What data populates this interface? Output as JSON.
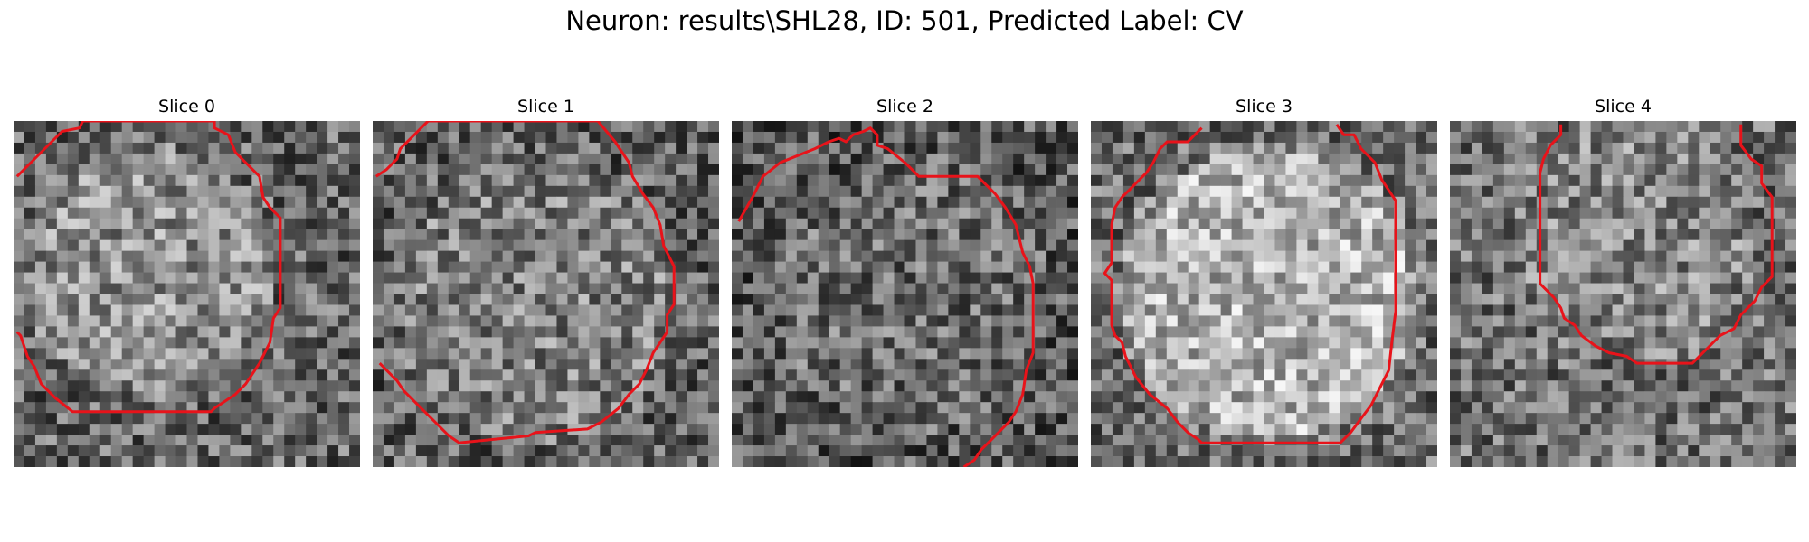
{
  "figure": {
    "title": "Neuron: results\\SHL28, ID: 501, Predicted Label: CV"
  },
  "panels": [
    {
      "title": "Slice 0",
      "seed": 11,
      "center": [
        0.39,
        0.43
      ],
      "radius": 0.36,
      "outside_base": 0.4,
      "contrast": 0.16,
      "contour_color": "#e8131a",
      "contour": [
        [
          0.01,
          0.16
        ],
        [
          0.08,
          0.09
        ],
        [
          0.14,
          0.03
        ],
        [
          0.19,
          0.02
        ],
        [
          0.2,
          0.0
        ],
        [
          0.58,
          0.0
        ],
        [
          0.58,
          0.02
        ],
        [
          0.62,
          0.04
        ],
        [
          0.64,
          0.09
        ],
        [
          0.71,
          0.16
        ],
        [
          0.72,
          0.22
        ],
        [
          0.74,
          0.25
        ],
        [
          0.77,
          0.28
        ],
        [
          0.77,
          0.54
        ],
        [
          0.75,
          0.57
        ],
        [
          0.74,
          0.64
        ],
        [
          0.71,
          0.7
        ],
        [
          0.67,
          0.76
        ],
        [
          0.64,
          0.79
        ],
        [
          0.61,
          0.81
        ],
        [
          0.58,
          0.83
        ],
        [
          0.57,
          0.84
        ],
        [
          0.17,
          0.84
        ],
        [
          0.12,
          0.8
        ],
        [
          0.08,
          0.76
        ],
        [
          0.06,
          0.71
        ],
        [
          0.04,
          0.68
        ],
        [
          0.02,
          0.62
        ],
        [
          0.01,
          0.61
        ]
      ]
    },
    {
      "title": "Slice 1",
      "seed": 23,
      "center": [
        0.48,
        0.52
      ],
      "radius": 0.41,
      "outside_base": 0.38,
      "contrast": 0.12,
      "contour_color": "#e8131a",
      "contour": [
        [
          0.01,
          0.16
        ],
        [
          0.04,
          0.14
        ],
        [
          0.07,
          0.11
        ],
        [
          0.08,
          0.08
        ],
        [
          0.12,
          0.04
        ],
        [
          0.15,
          0.01
        ],
        [
          0.16,
          0.0
        ],
        [
          0.65,
          0.0
        ],
        [
          0.7,
          0.06
        ],
        [
          0.74,
          0.12
        ],
        [
          0.75,
          0.16
        ],
        [
          0.78,
          0.21
        ],
        [
          0.81,
          0.25
        ],
        [
          0.83,
          0.3
        ],
        [
          0.84,
          0.36
        ],
        [
          0.87,
          0.42
        ],
        [
          0.87,
          0.53
        ],
        [
          0.85,
          0.56
        ],
        [
          0.85,
          0.61
        ],
        [
          0.81,
          0.67
        ],
        [
          0.79,
          0.72
        ],
        [
          0.77,
          0.76
        ],
        [
          0.74,
          0.79
        ],
        [
          0.71,
          0.83
        ],
        [
          0.66,
          0.87
        ],
        [
          0.62,
          0.89
        ],
        [
          0.47,
          0.9
        ],
        [
          0.45,
          0.91
        ],
        [
          0.25,
          0.93
        ],
        [
          0.22,
          0.91
        ],
        [
          0.19,
          0.88
        ],
        [
          0.13,
          0.82
        ],
        [
          0.09,
          0.78
        ],
        [
          0.07,
          0.75
        ],
        [
          0.04,
          0.72
        ],
        [
          0.02,
          0.7
        ]
      ]
    },
    {
      "title": "Slice 2",
      "seed": 37,
      "center": [
        0.52,
        0.5
      ],
      "radius": 0.4,
      "outside_base": 0.34,
      "contrast": 0.08,
      "contour_color": "#e8131a",
      "contour": [
        [
          0.02,
          0.29
        ],
        [
          0.06,
          0.22
        ],
        [
          0.09,
          0.16
        ],
        [
          0.14,
          0.12
        ],
        [
          0.19,
          0.1
        ],
        [
          0.24,
          0.08
        ],
        [
          0.28,
          0.06
        ],
        [
          0.31,
          0.05
        ],
        [
          0.33,
          0.06
        ],
        [
          0.35,
          0.04
        ],
        [
          0.38,
          0.03
        ],
        [
          0.4,
          0.02
        ],
        [
          0.42,
          0.04
        ],
        [
          0.42,
          0.07
        ],
        [
          0.45,
          0.08
        ],
        [
          0.5,
          0.12
        ],
        [
          0.52,
          0.14
        ],
        [
          0.54,
          0.16
        ],
        [
          0.71,
          0.16
        ],
        [
          0.76,
          0.21
        ],
        [
          0.79,
          0.25
        ],
        [
          0.82,
          0.3
        ],
        [
          0.84,
          0.38
        ],
        [
          0.86,
          0.42
        ],
        [
          0.87,
          0.47
        ],
        [
          0.87,
          0.67
        ],
        [
          0.85,
          0.72
        ],
        [
          0.84,
          0.79
        ],
        [
          0.82,
          0.84
        ],
        [
          0.8,
          0.87
        ],
        [
          0.75,
          0.92
        ],
        [
          0.72,
          0.95
        ],
        [
          0.7,
          0.98
        ],
        [
          0.67,
          1.0
        ]
      ]
    },
    {
      "title": "Slice 3",
      "seed": 53,
      "center": [
        0.52,
        0.5
      ],
      "radius": 0.43,
      "outside_base": 0.42,
      "contrast": 0.28,
      "contour_color": "#e8131a",
      "contour": [
        [
          0.32,
          0.02
        ],
        [
          0.28,
          0.06
        ],
        [
          0.22,
          0.06
        ],
        [
          0.2,
          0.08
        ],
        [
          0.18,
          0.12
        ],
        [
          0.16,
          0.15
        ],
        [
          0.14,
          0.17
        ],
        [
          0.12,
          0.19
        ],
        [
          0.09,
          0.22
        ],
        [
          0.07,
          0.25
        ],
        [
          0.06,
          0.3
        ],
        [
          0.06,
          0.41
        ],
        [
          0.04,
          0.44
        ],
        [
          0.06,
          0.46
        ],
        [
          0.06,
          0.59
        ],
        [
          0.07,
          0.62
        ],
        [
          0.09,
          0.64
        ],
        [
          0.1,
          0.68
        ],
        [
          0.13,
          0.74
        ],
        [
          0.17,
          0.79
        ],
        [
          0.22,
          0.83
        ],
        [
          0.25,
          0.87
        ],
        [
          0.28,
          0.9
        ],
        [
          0.31,
          0.92
        ],
        [
          0.32,
          0.93
        ],
        [
          0.72,
          0.93
        ],
        [
          0.75,
          0.9
        ],
        [
          0.78,
          0.86
        ],
        [
          0.81,
          0.82
        ],
        [
          0.84,
          0.76
        ],
        [
          0.86,
          0.72
        ],
        [
          0.87,
          0.63
        ],
        [
          0.88,
          0.55
        ],
        [
          0.88,
          0.23
        ],
        [
          0.84,
          0.17
        ],
        [
          0.82,
          0.12
        ],
        [
          0.78,
          0.08
        ],
        [
          0.76,
          0.04
        ],
        [
          0.73,
          0.04
        ],
        [
          0.71,
          0.01
        ]
      ]
    },
    {
      "title": "Slice 4",
      "seed": 71,
      "center": [
        0.53,
        0.34
      ],
      "radius": 0.34,
      "outside_base": 0.44,
      "contrast": 0.08,
      "contour_color": "#e8131a",
      "contour": [
        [
          0.32,
          0.01
        ],
        [
          0.32,
          0.04
        ],
        [
          0.29,
          0.07
        ],
        [
          0.27,
          0.11
        ],
        [
          0.26,
          0.15
        ],
        [
          0.26,
          0.47
        ],
        [
          0.3,
          0.51
        ],
        [
          0.32,
          0.54
        ],
        [
          0.33,
          0.57
        ],
        [
          0.36,
          0.59
        ],
        [
          0.38,
          0.62
        ],
        [
          0.42,
          0.65
        ],
        [
          0.46,
          0.67
        ],
        [
          0.51,
          0.68
        ],
        [
          0.54,
          0.7
        ],
        [
          0.7,
          0.7
        ],
        [
          0.74,
          0.66
        ],
        [
          0.78,
          0.62
        ],
        [
          0.82,
          0.6
        ],
        [
          0.84,
          0.56
        ],
        [
          0.88,
          0.52
        ],
        [
          0.9,
          0.48
        ],
        [
          0.93,
          0.45
        ],
        [
          0.93,
          0.22
        ],
        [
          0.9,
          0.18
        ],
        [
          0.9,
          0.13
        ],
        [
          0.87,
          0.11
        ],
        [
          0.84,
          0.07
        ],
        [
          0.84,
          0.01
        ]
      ]
    }
  ]
}
